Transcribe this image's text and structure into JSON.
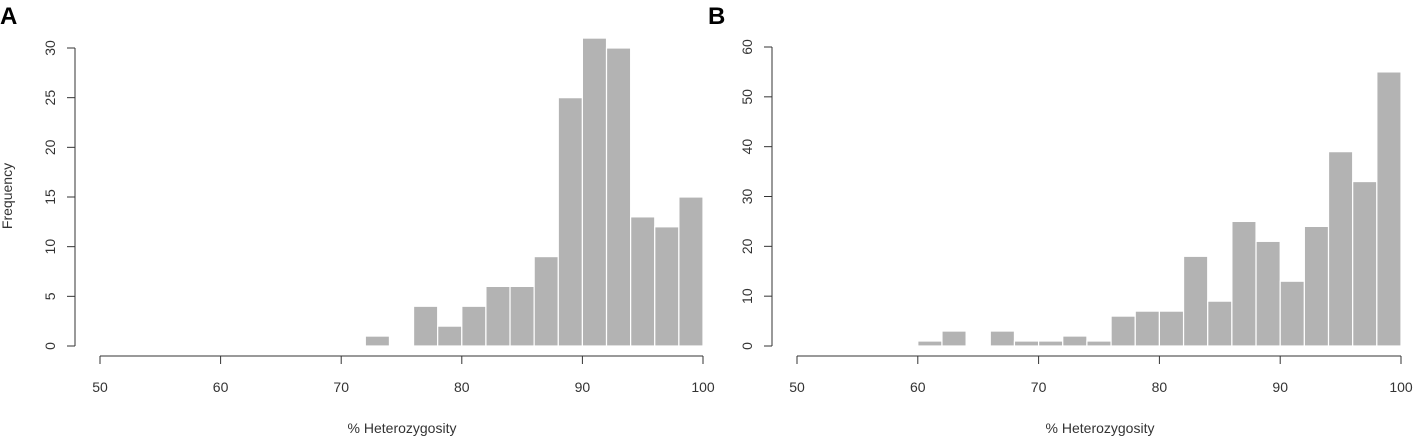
{
  "figure": {
    "bar_color": "#b3b3b3",
    "axis_color": "#333333"
  },
  "chart_data": [
    {
      "type": "bar",
      "panel_label": "A",
      "title": "",
      "xlabel": "% Heterozygosity",
      "ylabel": "Frequency",
      "bin_width": 2,
      "bins": [
        {
          "x0": 72,
          "x1": 74,
          "count": 1
        },
        {
          "x0": 74,
          "x1": 76,
          "count": 0
        },
        {
          "x0": 76,
          "x1": 78,
          "count": 4
        },
        {
          "x0": 78,
          "x1": 80,
          "count": 2
        },
        {
          "x0": 80,
          "x1": 82,
          "count": 4
        },
        {
          "x0": 82,
          "x1": 84,
          "count": 6
        },
        {
          "x0": 84,
          "x1": 86,
          "count": 6
        },
        {
          "x0": 86,
          "x1": 88,
          "count": 9
        },
        {
          "x0": 88,
          "x1": 90,
          "count": 25
        },
        {
          "x0": 90,
          "x1": 92,
          "count": 31
        },
        {
          "x0": 92,
          "x1": 94,
          "count": 30
        },
        {
          "x0": 94,
          "x1": 96,
          "count": 13
        },
        {
          "x0": 96,
          "x1": 98,
          "count": 12
        },
        {
          "x0": 98,
          "x1": 100,
          "count": 15
        }
      ],
      "xlim": [
        50,
        100
      ],
      "ylim": [
        0,
        30
      ],
      "x_ticks": [
        "50",
        "60",
        "70",
        "80",
        "90",
        "100"
      ],
      "y_ticks": [
        "0",
        "5",
        "10",
        "15",
        "20",
        "25",
        "30"
      ],
      "grid": false,
      "legend": "none"
    },
    {
      "type": "bar",
      "panel_label": "B",
      "title": "",
      "xlabel": "% Heterozygosity",
      "ylabel": "",
      "bin_width": 2,
      "bins": [
        {
          "x0": 60,
          "x1": 62,
          "count": 1
        },
        {
          "x0": 62,
          "x1": 64,
          "count": 3
        },
        {
          "x0": 64,
          "x1": 66,
          "count": 0
        },
        {
          "x0": 66,
          "x1": 68,
          "count": 3
        },
        {
          "x0": 68,
          "x1": 70,
          "count": 1
        },
        {
          "x0": 70,
          "x1": 72,
          "count": 1
        },
        {
          "x0": 72,
          "x1": 74,
          "count": 2
        },
        {
          "x0": 74,
          "x1": 76,
          "count": 1
        },
        {
          "x0": 76,
          "x1": 78,
          "count": 6
        },
        {
          "x0": 78,
          "x1": 80,
          "count": 7
        },
        {
          "x0": 80,
          "x1": 82,
          "count": 7
        },
        {
          "x0": 82,
          "x1": 84,
          "count": 18
        },
        {
          "x0": 84,
          "x1": 86,
          "count": 9
        },
        {
          "x0": 86,
          "x1": 88,
          "count": 25
        },
        {
          "x0": 88,
          "x1": 90,
          "count": 21
        },
        {
          "x0": 90,
          "x1": 92,
          "count": 13
        },
        {
          "x0": 92,
          "x1": 94,
          "count": 24
        },
        {
          "x0": 94,
          "x1": 96,
          "count": 39
        },
        {
          "x0": 96,
          "x1": 98,
          "count": 33
        },
        {
          "x0": 98,
          "x1": 100,
          "count": 55
        }
      ],
      "xlim": [
        50,
        100
      ],
      "ylim": [
        0,
        60
      ],
      "x_ticks": [
        "50",
        "60",
        "70",
        "80",
        "90",
        "100"
      ],
      "y_ticks": [
        "0",
        "10",
        "20",
        "30",
        "40",
        "50",
        "60"
      ],
      "grid": false,
      "legend": "none"
    }
  ]
}
